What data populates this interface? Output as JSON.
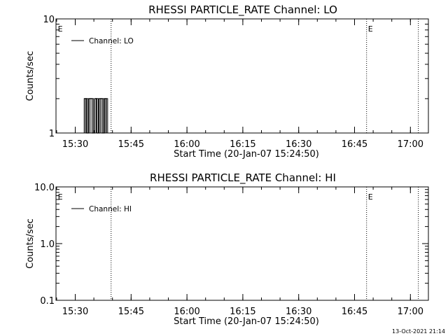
{
  "footer_timestamp": "13-Oct-2021 21:14",
  "chart_data": [
    {
      "type": "line",
      "title": "RHESSI PARTICLE_RATE Channel: LO",
      "xlabel": "Start Time (20-Jan-07 15:24:50)",
      "ylabel": "Counts/sec",
      "x_units": "minutes since 15:24:50",
      "xlim": [
        0,
        100
      ],
      "ylim": [
        1,
        10
      ],
      "yscale": "log",
      "x_ticks": [
        {
          "v": 5.17,
          "label": "15:30"
        },
        {
          "v": 20.17,
          "label": "15:45"
        },
        {
          "v": 35.17,
          "label": "16:00"
        },
        {
          "v": 50.17,
          "label": "16:15"
        },
        {
          "v": 65.17,
          "label": "16:30"
        },
        {
          "v": 80.17,
          "label": "16:45"
        },
        {
          "v": 95.17,
          "label": "17:00"
        }
      ],
      "y_ticks": [
        {
          "v": 1,
          "label": "1"
        },
        {
          "v": 10,
          "label": "10"
        }
      ],
      "legend": {
        "label": "Channel: LO",
        "placement": "top-left"
      },
      "vlines": [
        {
          "v": 14.8
        },
        {
          "v": 83.4
        },
        {
          "v": 97.3
        }
      ],
      "markers": [
        {
          "v": 0.3,
          "label": "E"
        },
        {
          "v": 83.6,
          "label": "E"
        }
      ],
      "series": [
        {
          "name": "Channel: LO",
          "color": "#000000",
          "x": [
            7.6,
            7.6,
            8.2,
            8.2,
            8.8,
            8.8,
            9.7,
            9.7,
            10.4,
            10.4,
            11.0,
            11.0,
            11.6,
            11.6,
            12.4,
            12.4,
            13.0,
            13.0,
            13.5,
            13.5
          ],
          "y": [
            1,
            2,
            2,
            1,
            1,
            2,
            2,
            1,
            1,
            2,
            2,
            1,
            1,
            2,
            2,
            1,
            1,
            2,
            2,
            1
          ]
        }
      ]
    },
    {
      "type": "line",
      "title": "RHESSI PARTICLE_RATE Channel: HI",
      "xlabel": "Start Time (20-Jan-07 15:24:50)",
      "ylabel": "Counts/sec",
      "x_units": "minutes since 15:24:50",
      "xlim": [
        0,
        100
      ],
      "ylim": [
        0.1,
        10
      ],
      "yscale": "log",
      "x_ticks": [
        {
          "v": 5.17,
          "label": "15:30"
        },
        {
          "v": 20.17,
          "label": "15:45"
        },
        {
          "v": 35.17,
          "label": "16:00"
        },
        {
          "v": 50.17,
          "label": "16:15"
        },
        {
          "v": 65.17,
          "label": "16:30"
        },
        {
          "v": 80.17,
          "label": "16:45"
        },
        {
          "v": 95.17,
          "label": "17:00"
        }
      ],
      "y_ticks": [
        {
          "v": 0.1,
          "label": "0.1"
        },
        {
          "v": 1,
          "label": "1.0"
        },
        {
          "v": 10,
          "label": "10.0"
        }
      ],
      "legend": {
        "label": "Channel: HI",
        "placement": "top-left"
      },
      "vlines": [
        {
          "v": 14.8
        },
        {
          "v": 83.4
        },
        {
          "v": 97.3
        }
      ],
      "markers": [
        {
          "v": 0.3,
          "label": "E"
        },
        {
          "v": 83.6,
          "label": "E"
        }
      ],
      "series": [
        {
          "name": "Channel: HI",
          "color": "#000000",
          "x": [],
          "y": []
        }
      ]
    }
  ]
}
